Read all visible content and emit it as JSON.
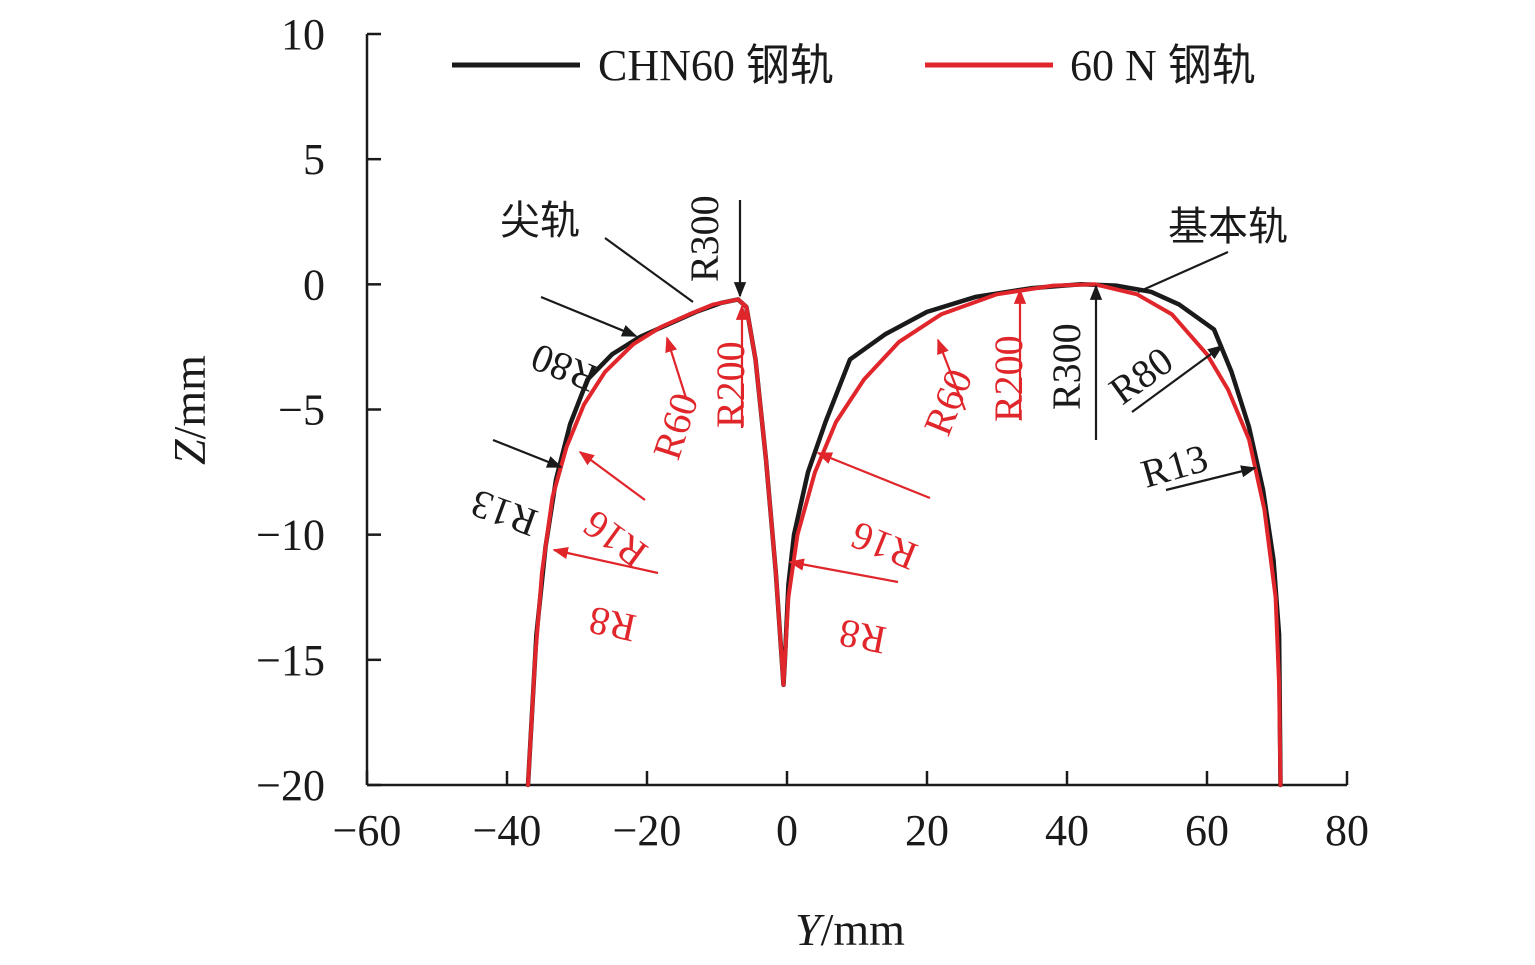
{
  "chart_data": {
    "type": "line",
    "xlabel_var": "Y",
    "xlabel_unit": "/mm",
    "ylabel_var": "Z",
    "ylabel_unit": "/mm",
    "xlim": [
      -60,
      80
    ],
    "ylim": [
      -20,
      10
    ],
    "xticks": [
      -60,
      -40,
      -20,
      0,
      20,
      40,
      60,
      80
    ],
    "yticks": [
      10,
      5,
      0,
      -5,
      -10,
      -15,
      -20
    ],
    "xtick_labels": [
      "−60",
      "−40",
      "−20",
      "0",
      "20",
      "40",
      "60",
      "80"
    ],
    "ytick_labels": [
      "10",
      "5",
      "0",
      "−5",
      "−10",
      "−15",
      "−20"
    ],
    "legend": {
      "position": "top",
      "entries": [
        "CHN60 钢轨",
        "60 N 钢轨"
      ]
    },
    "series": [
      {
        "name": "CHN60 钢轨",
        "color": "#1a1a1a",
        "segments": [
          [
            [
              -37.0,
              -20.0
            ],
            [
              -35.8,
              -14.0
            ],
            [
              -34.5,
              -10.5
            ],
            [
              -33.0,
              -7.8
            ],
            [
              -31.0,
              -5.6
            ],
            [
              -28.5,
              -3.8
            ],
            [
              -25.0,
              -2.8
            ],
            [
              -21.0,
              -2.1
            ],
            [
              -17.0,
              -1.6
            ],
            [
              -13.0,
              -1.1
            ],
            [
              -9.5,
              -0.75
            ],
            [
              -7.0,
              -0.6
            ],
            [
              -5.8,
              -0.9
            ],
            [
              -4.5,
              -3.0
            ],
            [
              -3.0,
              -7.0
            ],
            [
              -1.6,
              -11.5
            ],
            [
              -0.5,
              -16.0
            ],
            [
              -0.3,
              -15.0
            ],
            [
              0.2,
              -12.0
            ],
            [
              1.0,
              -10.0
            ],
            [
              3.0,
              -7.5
            ],
            [
              5.5,
              -5.5
            ],
            [
              9.0,
              -3.0
            ],
            [
              14.0,
              -2.0
            ],
            [
              20.0,
              -1.1
            ],
            [
              27.0,
              -0.5
            ],
            [
              35.0,
              -0.15
            ],
            [
              42.0,
              0.0
            ],
            [
              47.0,
              -0.05
            ],
            [
              52.0,
              -0.3
            ],
            [
              56.0,
              -0.8
            ],
            [
              61.0,
              -1.8
            ],
            [
              63.5,
              -3.5
            ],
            [
              66.0,
              -5.7
            ],
            [
              68.0,
              -8.2
            ],
            [
              69.5,
              -11.0
            ],
            [
              70.3,
              -14.0
            ],
            [
              70.5,
              -20.0
            ]
          ]
        ]
      },
      {
        "name": "60 N 钢轨",
        "color": "#e0262b",
        "segments": [
          [
            [
              -37.0,
              -20.0
            ],
            [
              -36.0,
              -15.0
            ],
            [
              -35.0,
              -11.5
            ],
            [
              -33.5,
              -8.5
            ],
            [
              -31.5,
              -6.5
            ],
            [
              -29.0,
              -4.8
            ],
            [
              -26.0,
              -3.5
            ],
            [
              -22.0,
              -2.4
            ],
            [
              -18.0,
              -1.7
            ],
            [
              -14.0,
              -1.2
            ],
            [
              -10.5,
              -0.8
            ],
            [
              -7.0,
              -0.6
            ],
            [
              -5.8,
              -0.9
            ],
            [
              -4.5,
              -3.0
            ],
            [
              -3.0,
              -7.0
            ],
            [
              -1.6,
              -11.5
            ],
            [
              -0.5,
              -16.0
            ],
            [
              -0.3,
              -15.0
            ],
            [
              0.2,
              -12.5
            ],
            [
              1.5,
              -10.0
            ],
            [
              4.0,
              -7.5
            ],
            [
              7.0,
              -5.5
            ],
            [
              11.0,
              -3.8
            ],
            [
              16.0,
              -2.3
            ],
            [
              22.0,
              -1.2
            ],
            [
              30.0,
              -0.4
            ],
            [
              38.0,
              -0.05
            ],
            [
              44.0,
              0.0
            ],
            [
              50.0,
              -0.4
            ],
            [
              55.0,
              -1.2
            ],
            [
              60.0,
              -2.8
            ],
            [
              63.0,
              -4.2
            ],
            [
              66.0,
              -6.2
            ],
            [
              68.2,
              -9.0
            ],
            [
              69.8,
              -12.5
            ],
            [
              70.3,
              -16.0
            ],
            [
              70.5,
              -20.0
            ]
          ]
        ]
      }
    ],
    "annotations": [
      {
        "text": "尖轨",
        "color": "#1a1a1a",
        "kind": "label"
      },
      {
        "text": "基本轨",
        "color": "#1a1a1a",
        "kind": "label"
      },
      {
        "text": "R300",
        "color": "#1a1a1a"
      },
      {
        "text": "R80",
        "color": "#1a1a1a"
      },
      {
        "text": "R13",
        "color": "#1a1a1a"
      },
      {
        "text": "R60",
        "color": "#e0262b"
      },
      {
        "text": "R200",
        "color": "#e0262b"
      },
      {
        "text": "R16",
        "color": "#e0262b"
      },
      {
        "text": "R8",
        "color": "#e0262b"
      },
      {
        "text": "R60",
        "color": "#e0262b"
      },
      {
        "text": "R200",
        "color": "#e0262b"
      },
      {
        "text": "R300",
        "color": "#1a1a1a"
      },
      {
        "text": "R80",
        "color": "#1a1a1a"
      },
      {
        "text": "R13",
        "color": "#1a1a1a"
      },
      {
        "text": "R16",
        "color": "#e0262b"
      },
      {
        "text": "R8",
        "color": "#e0262b"
      }
    ]
  }
}
